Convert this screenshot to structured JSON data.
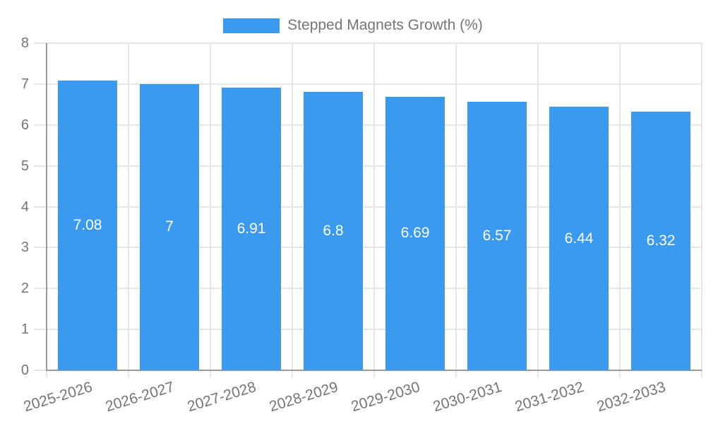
{
  "chart_data": {
    "type": "bar",
    "title": "",
    "legend": {
      "label": "Stepped Magnets Growth (%)",
      "position": "top"
    },
    "categories": [
      "2025-2026",
      "2026-2027",
      "2027-2028",
      "2028-2029",
      "2029-2030",
      "2030-2031",
      "2031-2032",
      "2032-2033"
    ],
    "series": [
      {
        "name": "Stepped Magnets Growth (%)",
        "values": [
          7.08,
          7,
          6.91,
          6.8,
          6.69,
          6.57,
          6.44,
          6.32
        ],
        "value_labels": [
          "7.08",
          "7",
          "6.91",
          "6.8",
          "6.69",
          "6.57",
          "6.44",
          "6.32"
        ]
      }
    ],
    "xlabel": "",
    "ylabel": "",
    "ylim": [
      0,
      8
    ],
    "y_ticks": [
      "0",
      "1",
      "2",
      "3",
      "4",
      "5",
      "6",
      "7",
      "8"
    ],
    "grid": true,
    "x_tick_rotation_deg": -17,
    "colors": {
      "bar": "#3b9aee",
      "value_label": "#ffffff",
      "axis_text": "#757575",
      "legend_text": "#757575",
      "gridline": "#e5e5e5",
      "axis_line": "#9a9a9a",
      "background": "#ffffff"
    }
  }
}
